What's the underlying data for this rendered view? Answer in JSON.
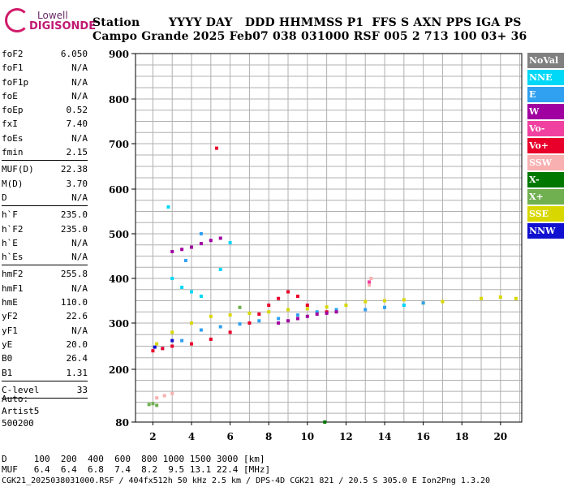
{
  "logo": {
    "brand": "Lowell",
    "product": "DIGISONDE"
  },
  "header": {
    "line1": "Station       YYYY DAY   DDD HHMMSS P1  FFS S AXN PPS IGA PS",
    "line2": "Campo Grande 2025 Feb07 038 031000 RSF 005 2 713 100 03+ 36"
  },
  "params": [
    [
      {
        "k": "foF2",
        "v": "6.050"
      },
      {
        "k": "foF1",
        "v": "N/A"
      },
      {
        "k": "foF1p",
        "v": "N/A"
      },
      {
        "k": "foE",
        "v": "N/A"
      },
      {
        "k": "foEp",
        "v": "0.52"
      },
      {
        "k": "fxI",
        "v": "7.40"
      },
      {
        "k": "foEs",
        "v": "N/A"
      },
      {
        "k": "fmin",
        "v": "2.15"
      }
    ],
    [
      {
        "k": "MUF(D)",
        "v": "22.38"
      },
      {
        "k": "M(D)",
        "v": "3.70"
      },
      {
        "k": "D",
        "v": "N/A"
      }
    ],
    [
      {
        "k": "h`F",
        "v": "235.0"
      },
      {
        "k": "h`F2",
        "v": "235.0"
      },
      {
        "k": "h`E",
        "v": "N/A"
      },
      {
        "k": "h`Es",
        "v": "N/A"
      }
    ],
    [
      {
        "k": "hmF2",
        "v": "255.8"
      },
      {
        "k": "hmF1",
        "v": "N/A"
      },
      {
        "k": "hmE",
        "v": "110.0"
      },
      {
        "k": "yF2",
        "v": "22.6"
      },
      {
        "k": "yF1",
        "v": "N/A"
      },
      {
        "k": "yE",
        "v": "20.0"
      },
      {
        "k": "B0",
        "v": "26.4"
      },
      {
        "k": "B1",
        "v": "1.31"
      }
    ],
    [
      {
        "k": "C-level",
        "v": "33"
      }
    ]
  ],
  "auto": {
    "line1": "Auto:",
    "line2": "Artist5",
    "line3": "500200"
  },
  "legend": [
    {
      "label": "NoVal",
      "color": "#808080"
    },
    {
      "label": "NNE",
      "color": "#00d8f8"
    },
    {
      "label": "E",
      "color": "#30a0f0"
    },
    {
      "label": "W",
      "color": "#a000a0"
    },
    {
      "label": "Vo-",
      "color": "#f040a0"
    },
    {
      "label": "Vo+",
      "color": "#e8002a"
    },
    {
      "label": "SSW",
      "color": "#f8b0b0"
    },
    {
      "label": "X-",
      "color": "#007800"
    },
    {
      "label": "X+",
      "color": "#70b050"
    },
    {
      "label": "SSE",
      "color": "#d8d800"
    },
    {
      "label": "NNW",
      "color": "#1010d0"
    }
  ],
  "bottom": {
    "d_line": "D     100  200  400  600  800 1000 1500 3000 [km]",
    "muf_line": "MUF   6.4  6.4  6.8  7.4  8.2  9.5 13.1 22.4 [MHz]",
    "footer": "CGK21_2025038031000.RSF / 404fx512h 50 kHz 2.5 km / DPS-4D CGK21 821 / 20.5 S 305.0 E Ion2Png 1.3.20"
  },
  "chart_data": {
    "type": "scatter",
    "xlabel": "",
    "ylabel": "",
    "xlim": [
      1.1,
      21.1
    ],
    "ylim": [
      80,
      900
    ],
    "x_ticks": [
      2,
      4,
      6,
      8,
      10,
      12,
      14,
      16,
      18,
      20
    ],
    "y_ticks": [
      80,
      200,
      300,
      400,
      500,
      600,
      700,
      800,
      900
    ],
    "grid": true,
    "series": [
      {
        "name": "SSE",
        "color": "#d8d800",
        "points": [
          [
            2.2,
            255
          ],
          [
            3.0,
            280
          ],
          [
            4.0,
            300
          ],
          [
            5.0,
            315
          ],
          [
            6.0,
            318
          ],
          [
            7.0,
            322
          ],
          [
            8.0,
            325
          ],
          [
            9.0,
            330
          ],
          [
            10.0,
            332
          ],
          [
            11.0,
            336
          ],
          [
            12.0,
            340
          ],
          [
            13.0,
            348
          ],
          [
            14.0,
            350
          ],
          [
            15.0,
            352
          ],
          [
            16.0,
            345
          ],
          [
            17.0,
            348
          ],
          [
            19.0,
            355
          ],
          [
            20.0,
            358
          ],
          [
            20.8,
            355
          ]
        ]
      },
      {
        "name": "E",
        "color": "#30a0f0",
        "points": [
          [
            2.5,
            245
          ],
          [
            3.5,
            262
          ],
          [
            4.5,
            285
          ],
          [
            5.5,
            292
          ],
          [
            6.5,
            298
          ],
          [
            7.5,
            305
          ],
          [
            8.5,
            310
          ],
          [
            9.5,
            318
          ],
          [
            10.5,
            325
          ],
          [
            11.5,
            330
          ],
          [
            13.0,
            330
          ],
          [
            14.0,
            335
          ],
          [
            15.0,
            340
          ],
          [
            16.0,
            345
          ],
          [
            3.7,
            440
          ],
          [
            4.0,
            470
          ],
          [
            4.5,
            500
          ]
        ]
      },
      {
        "name": "Vo+",
        "color": "#e8002a",
        "points": [
          [
            2.0,
            240
          ],
          [
            2.5,
            245
          ],
          [
            3.0,
            250
          ],
          [
            4.0,
            255
          ],
          [
            5.0,
            265
          ],
          [
            6.0,
            280
          ],
          [
            7.0,
            300
          ],
          [
            7.5,
            320
          ],
          [
            8.0,
            340
          ],
          [
            8.5,
            355
          ],
          [
            9.0,
            370
          ],
          [
            9.5,
            360
          ],
          [
            10.0,
            340
          ],
          [
            11.0,
            325
          ],
          [
            5.3,
            690
          ]
        ]
      },
      {
        "name": "W",
        "color": "#a000a0",
        "points": [
          [
            3.0,
            460
          ],
          [
            3.5,
            465
          ],
          [
            4.0,
            470
          ],
          [
            4.5,
            478
          ],
          [
            5.0,
            485
          ],
          [
            5.5,
            490
          ],
          [
            8.5,
            300
          ],
          [
            9.0,
            305
          ],
          [
            9.5,
            310
          ],
          [
            10.0,
            315
          ],
          [
            10.5,
            320
          ],
          [
            11.0,
            322
          ],
          [
            11.5,
            325
          ]
        ]
      },
      {
        "name": "NNE",
        "color": "#00d8f8",
        "points": [
          [
            2.8,
            560
          ],
          [
            3.0,
            400
          ],
          [
            3.5,
            380
          ],
          [
            4.0,
            370
          ],
          [
            4.5,
            360
          ],
          [
            5.5,
            420
          ],
          [
            6.0,
            480
          ],
          [
            15.0,
            340
          ]
        ]
      },
      {
        "name": "SSW",
        "color": "#f8b0b0",
        "points": [
          [
            2.2,
            135
          ],
          [
            2.6,
            140
          ],
          [
            3.0,
            145
          ],
          [
            13.2,
            385
          ],
          [
            13.3,
            400
          ]
        ]
      },
      {
        "name": "X+",
        "color": "#70b050",
        "points": [
          [
            1.8,
            120
          ],
          [
            2.0,
            122
          ],
          [
            2.2,
            118
          ],
          [
            6.5,
            335
          ]
        ]
      },
      {
        "name": "X-",
        "color": "#007800",
        "points": [
          [
            10.9,
            80
          ]
        ]
      },
      {
        "name": "Vo-",
        "color": "#f040a0",
        "points": [
          [
            13.2,
            392
          ]
        ]
      },
      {
        "name": "NNW",
        "color": "#1010d0",
        "points": [
          [
            2.1,
            248
          ],
          [
            3.0,
            262
          ]
        ]
      }
    ]
  }
}
